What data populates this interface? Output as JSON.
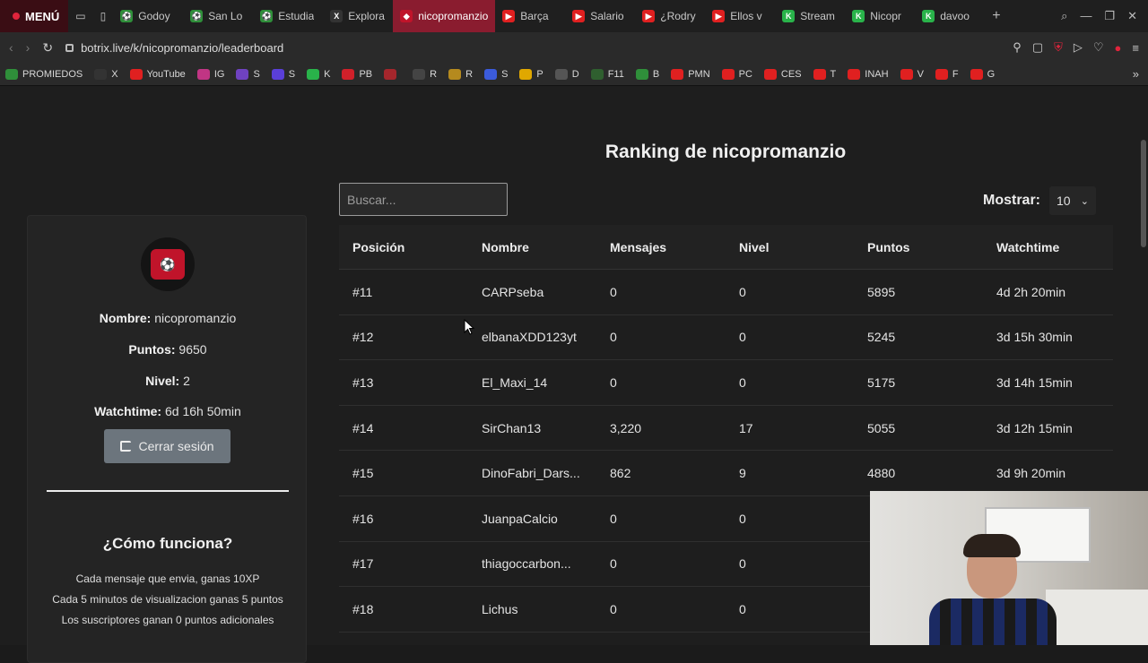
{
  "browser": {
    "menu_label": "MENÚ",
    "tabs": [
      {
        "label": "Godoy",
        "icon": "soccer-icon",
        "color": "#2f8f3a"
      },
      {
        "label": "San Lo",
        "icon": "soccer-icon",
        "color": "#2f8f3a"
      },
      {
        "label": "Estudia",
        "icon": "soccer-icon",
        "color": "#2f8f3a"
      },
      {
        "label": "Explora",
        "icon": "x-icon",
        "color": "#333333"
      },
      {
        "label": "nicopromanzio",
        "icon": "botrix-icon",
        "color": "#c0142a",
        "active": true
      },
      {
        "label": "Barça",
        "icon": "youtube-icon",
        "color": "#e02020"
      },
      {
        "label": "Salario",
        "icon": "youtube-icon",
        "color": "#e02020"
      },
      {
        "label": "¿Rodry",
        "icon": "youtube-icon",
        "color": "#e02020"
      },
      {
        "label": "Ellos v",
        "icon": "youtube-icon",
        "color": "#e02020"
      },
      {
        "label": "Stream",
        "icon": "kick-icon",
        "color": "#29b34a"
      },
      {
        "label": "Nicopr",
        "icon": "kick-icon",
        "color": "#29b34a"
      },
      {
        "label": "davoo",
        "icon": "kick-icon",
        "color": "#29b34a"
      }
    ],
    "url": "botrix.live/k/nicopromanzio/leaderboard",
    "bookmarks": [
      {
        "label": "PROMIEDOS",
        "color": "#2f8f3a"
      },
      {
        "label": "X",
        "color": "#333333"
      },
      {
        "label": "YouTube",
        "color": "#e02020"
      },
      {
        "label": "IG",
        "color": "#c13584"
      },
      {
        "label": "S",
        "color": "#6f42c1"
      },
      {
        "label": "S",
        "color": "#5a3fd8"
      },
      {
        "label": "K",
        "color": "#29b34a"
      },
      {
        "label": "PB",
        "color": "#d0202a"
      },
      {
        "label": "",
        "color": "#a4262c"
      },
      {
        "label": "R",
        "color": "#444444"
      },
      {
        "label": "R",
        "color": "#b58a1e"
      },
      {
        "label": "S",
        "color": "#3b5bdb"
      },
      {
        "label": "P",
        "color": "#e0a800"
      },
      {
        "label": "D",
        "color": "#555555"
      },
      {
        "label": "F11",
        "color": "#2f5f2f"
      },
      {
        "label": "B",
        "color": "#2f8f3a"
      },
      {
        "label": "PMN",
        "color": "#e02020"
      },
      {
        "label": "PC",
        "color": "#e02020"
      },
      {
        "label": "CES",
        "color": "#e02020"
      },
      {
        "label": "T",
        "color": "#e02020"
      },
      {
        "label": "INAH",
        "color": "#e02020"
      },
      {
        "label": "V",
        "color": "#e02020"
      },
      {
        "label": "F",
        "color": "#e02020"
      },
      {
        "label": "G",
        "color": "#e02020"
      }
    ]
  },
  "page": {
    "title": "Ranking de nicopromanzio",
    "search": {
      "placeholder": "Buscar...",
      "value": ""
    },
    "show": {
      "label": "Mostrar:",
      "selected": "10"
    }
  },
  "profile": {
    "name_label": "Nombre:",
    "name": "nicopromanzio",
    "points_label": "Puntos:",
    "points": "9650",
    "level_label": "Nivel:",
    "level": "2",
    "watchtime_label": "Watchtime:",
    "watchtime": "6d 16h 50min",
    "logout_label": "Cerrar sesión",
    "how_title": "¿Cómo funciona?",
    "rules": [
      "Cada mensaje que envia, ganas 10XP",
      "Cada 5 minutos de visualizacion ganas 5 puntos",
      "Los suscriptores ganan 0 puntos adicionales"
    ]
  },
  "table": {
    "headers": [
      "Posición",
      "Nombre",
      "Mensajes",
      "Nivel",
      "Puntos",
      "Watchtime"
    ],
    "rows": [
      [
        "#11",
        "CARPseba",
        "0",
        "0",
        "5895",
        "4d 2h 20min"
      ],
      [
        "#12",
        "elbanaXDD123yt",
        "0",
        "0",
        "5245",
        "3d 15h 30min"
      ],
      [
        "#13",
        "El_Maxi_14",
        "0",
        "0",
        "5175",
        "3d 14h 15min"
      ],
      [
        "#14",
        "SirChan13",
        "3,220",
        "17",
        "5055",
        "3d 12h 15min"
      ],
      [
        "#15",
        "DinoFabri_Dars...",
        "862",
        "9",
        "4880",
        "3d 9h 20min"
      ],
      [
        "#16",
        "JuanpaCalcio",
        "0",
        "0",
        "",
        ""
      ],
      [
        "#17",
        "thiagoccarbon...",
        "0",
        "0",
        "",
        ""
      ],
      [
        "#18",
        "Lichus",
        "0",
        "0",
        "",
        ""
      ]
    ]
  }
}
